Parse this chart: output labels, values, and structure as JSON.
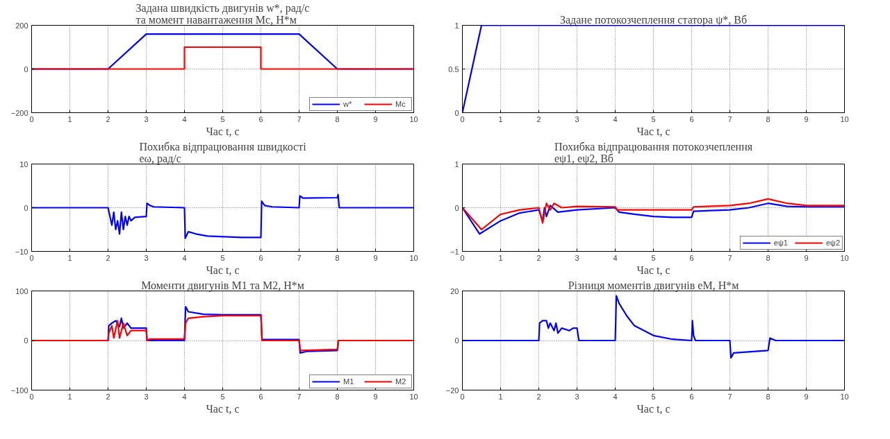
{
  "chart_data": [
    {
      "type": "line",
      "title": "Задана швидкість двигунів w*, рад/с\nта момент навантаження Mc, Н*м",
      "xlabel": "Час t, с",
      "xlim": [
        0,
        10
      ],
      "xticks": [
        0,
        1,
        2,
        3,
        4,
        5,
        6,
        7,
        8,
        9,
        10
      ],
      "ylim": [
        -200,
        200
      ],
      "yticks": [
        -200,
        0,
        200
      ],
      "grid": true,
      "legend": "bottom right",
      "series": [
        {
          "name": "w*",
          "color": "#0000ff",
          "x": [
            0,
            2,
            3,
            7,
            8,
            10
          ],
          "values": [
            0,
            0,
            160,
            160,
            0,
            0
          ]
        },
        {
          "name": "Mc",
          "color": "#ff0000",
          "x": [
            0,
            4,
            4,
            6,
            6,
            10
          ],
          "values": [
            0,
            0,
            100,
            100,
            0,
            0
          ]
        }
      ]
    },
    {
      "type": "line",
      "title": "Задане потокозчеплення статора ψ*, Вб",
      "xlabel": "Час t, с",
      "xlim": [
        0,
        10
      ],
      "xticks": [
        0,
        1,
        2,
        3,
        4,
        5,
        6,
        7,
        8,
        9,
        10
      ],
      "ylim": [
        0,
        1
      ],
      "yticks": [
        0,
        {
          "value": 0.5,
          "label": "0.5"
        },
        1
      ],
      "grid": true,
      "series": [
        {
          "color": "#0000ff",
          "x": [
            0,
            0.25,
            0.5,
            10
          ],
          "values": [
            0,
            0.5,
            1,
            1
          ]
        }
      ]
    },
    {
      "type": "line",
      "title": "Похибка відпрацювання швидкості\neω, рад/с",
      "xlabel": "Час t, с",
      "xlim": [
        0,
        10
      ],
      "xticks": [
        0,
        1,
        2,
        3,
        4,
        5,
        6,
        7,
        8,
        9,
        10
      ],
      "ylim": [
        -10,
        10
      ],
      "yticks": [
        -10,
        0,
        10
      ],
      "grid": true,
      "series": [
        {
          "color": "#0000ff",
          "x": [
            0,
            2,
            2.05,
            2.1,
            2.15,
            2.2,
            2.25,
            2.3,
            2.35,
            2.4,
            2.45,
            2.5,
            2.55,
            2.6,
            2.7,
            3,
            3.02,
            3.1,
            3.2,
            4,
            4.02,
            4.1,
            4.3,
            4.6,
            5.5,
            6,
            6.02,
            6.1,
            6.3,
            7,
            7.02,
            7.1,
            8,
            8.02,
            8.05,
            10
          ],
          "values": [
            0,
            0,
            -2,
            -4,
            -1,
            -5,
            -3,
            -6,
            -1,
            -5,
            -2,
            -4,
            -2,
            -3,
            -2.2,
            -2,
            1,
            0.5,
            0.2,
            0,
            -7,
            -5.5,
            -6,
            -6.5,
            -6.8,
            -6.8,
            1.5,
            0.5,
            0.2,
            0,
            2.7,
            2.2,
            2.3,
            3,
            0,
            0
          ]
        }
      ]
    },
    {
      "type": "line",
      "title": "Похибка відпрацювання потокозчеплення\neψ1, eψ2, Вб",
      "xlabel": "Час t, с",
      "xlim": [
        0,
        10
      ],
      "xticks": [
        0,
        1,
        2,
        3,
        4,
        5,
        6,
        7,
        8,
        9,
        10
      ],
      "ylim": [
        -1,
        1
      ],
      "yticks": [
        -1,
        0,
        1
      ],
      "grid": true,
      "legend": "bottom right",
      "series": [
        {
          "name": "eψ1",
          "color": "#0000ff",
          "x": [
            0,
            0.45,
            1,
            1.5,
            2,
            2.1,
            2.15,
            2.2,
            2.3,
            2.5,
            3,
            4,
            4.1,
            4.5,
            5,
            5.5,
            6,
            6.05,
            7,
            7.5,
            8,
            8.5,
            9,
            10
          ],
          "values": [
            0,
            -0.6,
            -0.3,
            -0.12,
            -0.05,
            -0.3,
            0,
            -0.2,
            0.05,
            -0.1,
            -0.05,
            0,
            -0.1,
            -0.15,
            -0.2,
            -0.22,
            -0.22,
            -0.08,
            -0.05,
            0,
            0.1,
            0.03,
            0.02,
            0.02
          ]
        },
        {
          "name": "eψ2",
          "color": "#ff0000",
          "x": [
            0,
            0.5,
            1,
            1.5,
            2,
            2.1,
            2.2,
            2.3,
            2.4,
            2.6,
            3,
            4,
            4.05,
            6,
            6.05,
            7,
            7.5,
            8,
            8.5,
            9,
            10
          ],
          "values": [
            0,
            -0.5,
            -0.15,
            -0.05,
            0,
            -0.35,
            0.1,
            -0.05,
            0.1,
            0,
            0.03,
            0.02,
            -0.05,
            -0.05,
            0.02,
            0.05,
            0.1,
            0.2,
            0.1,
            0.05,
            0.05
          ]
        }
      ]
    },
    {
      "type": "line",
      "title": "Моменти двигунів M1 та M2, Н*м",
      "xlabel": "Час t, с",
      "xlim": [
        0,
        10
      ],
      "xticks": [
        0,
        1,
        2,
        3,
        4,
        5,
        6,
        7,
        8,
        9,
        10
      ],
      "ylim": [
        -100,
        100
      ],
      "yticks": [
        -100,
        0,
        100
      ],
      "grid": true,
      "legend": "bottom right",
      "series": [
        {
          "name": "M1",
          "color": "#0000ff",
          "x": [
            0,
            2,
            2.02,
            2.1,
            2.2,
            2.3,
            2.35,
            2.4,
            2.5,
            2.6,
            2.8,
            3,
            3.02,
            4,
            4.03,
            4.1,
            4.5,
            5,
            6,
            6.03,
            7,
            7.03,
            7.2,
            8,
            8.03,
            10
          ],
          "values": [
            0,
            0,
            30,
            35,
            40,
            28,
            45,
            25,
            35,
            25,
            25,
            25,
            0,
            0,
            68,
            58,
            53,
            52,
            52,
            2,
            2,
            -25,
            -22,
            -20,
            0,
            0
          ]
        },
        {
          "name": "M2",
          "color": "#ff0000",
          "x": [
            0,
            2,
            2.02,
            2.1,
            2.15,
            2.25,
            2.3,
            2.4,
            2.5,
            2.6,
            3,
            3.02,
            3.1,
            4,
            4.03,
            4.1,
            4.5,
            5,
            6,
            6.03,
            7,
            7.03,
            8,
            8.03,
            10
          ],
          "values": [
            0,
            0,
            15,
            30,
            5,
            40,
            5,
            35,
            10,
            20,
            20,
            0,
            3,
            3,
            35,
            45,
            48,
            50,
            50,
            0,
            0,
            -20,
            -18,
            0,
            0
          ]
        }
      ]
    },
    {
      "type": "line",
      "title": "Різниця моментів двигунів eM, Н*м",
      "xlabel": "Час t, с",
      "xlim": [
        0,
        10
      ],
      "xticks": [
        0,
        1,
        2,
        3,
        4,
        5,
        6,
        7,
        8,
        9,
        10
      ],
      "ylim": [
        -20,
        20
      ],
      "yticks": [
        -20,
        0,
        20
      ],
      "grid": true,
      "series": [
        {
          "color": "#0000ff",
          "x": [
            0,
            2,
            2.02,
            2.1,
            2.2,
            2.25,
            2.3,
            2.4,
            2.45,
            2.5,
            2.6,
            2.8,
            2.9,
            3,
            3.05,
            4,
            4.03,
            4.1,
            4.3,
            4.5,
            5,
            5.5,
            6,
            6.02,
            6.05,
            6.1,
            7,
            7.03,
            7.1,
            8,
            8.05,
            8.2,
            10
          ],
          "values": [
            0,
            0,
            7,
            8,
            8,
            5,
            7,
            4,
            7,
            3,
            5,
            4,
            5,
            5,
            0,
            0,
            18,
            15,
            10,
            6,
            2,
            0.5,
            0,
            8,
            2,
            0,
            0,
            -7,
            -5,
            -4,
            1,
            0,
            0
          ]
        }
      ]
    }
  ]
}
